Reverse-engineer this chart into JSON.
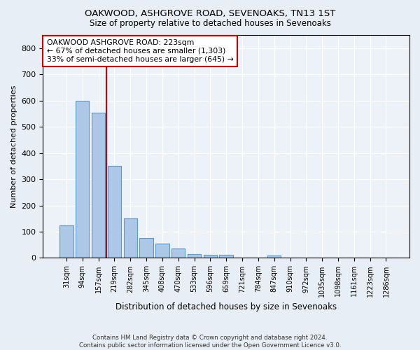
{
  "title": "OAKWOOD, ASHGROVE ROAD, SEVENOAKS, TN13 1ST",
  "subtitle": "Size of property relative to detached houses in Sevenoaks",
  "xlabel": "Distribution of detached houses by size in Sevenoaks",
  "ylabel": "Number of detached properties",
  "categories": [
    "31sqm",
    "94sqm",
    "157sqm",
    "219sqm",
    "282sqm",
    "345sqm",
    "408sqm",
    "470sqm",
    "533sqm",
    "596sqm",
    "659sqm",
    "721sqm",
    "784sqm",
    "847sqm",
    "910sqm",
    "972sqm",
    "1035sqm",
    "1098sqm",
    "1161sqm",
    "1223sqm",
    "1286sqm"
  ],
  "values": [
    125,
    600,
    555,
    350,
    150,
    75,
    55,
    35,
    15,
    13,
    12,
    0,
    0,
    8,
    0,
    0,
    0,
    0,
    0,
    0,
    0
  ],
  "bar_color": "#adc8e6",
  "bar_edge_color": "#5a99cc",
  "vline_color": "#cc0000",
  "annotation_text": "OAKWOOD ASHGROVE ROAD: 223sqm\n← 67% of detached houses are smaller (1,303)\n33% of semi-detached houses are larger (645) →",
  "annotation_box_color": "#ffffff",
  "annotation_box_edge": "#cc0000",
  "ylim": [
    0,
    850
  ],
  "yticks": [
    0,
    100,
    200,
    300,
    400,
    500,
    600,
    700,
    800
  ],
  "footer": "Contains HM Land Registry data © Crown copyright and database right 2024.\nContains public sector information licensed under the Open Government Licence v3.0.",
  "bg_color": "#e8eef5",
  "plot_bg_color": "#edf2f8"
}
